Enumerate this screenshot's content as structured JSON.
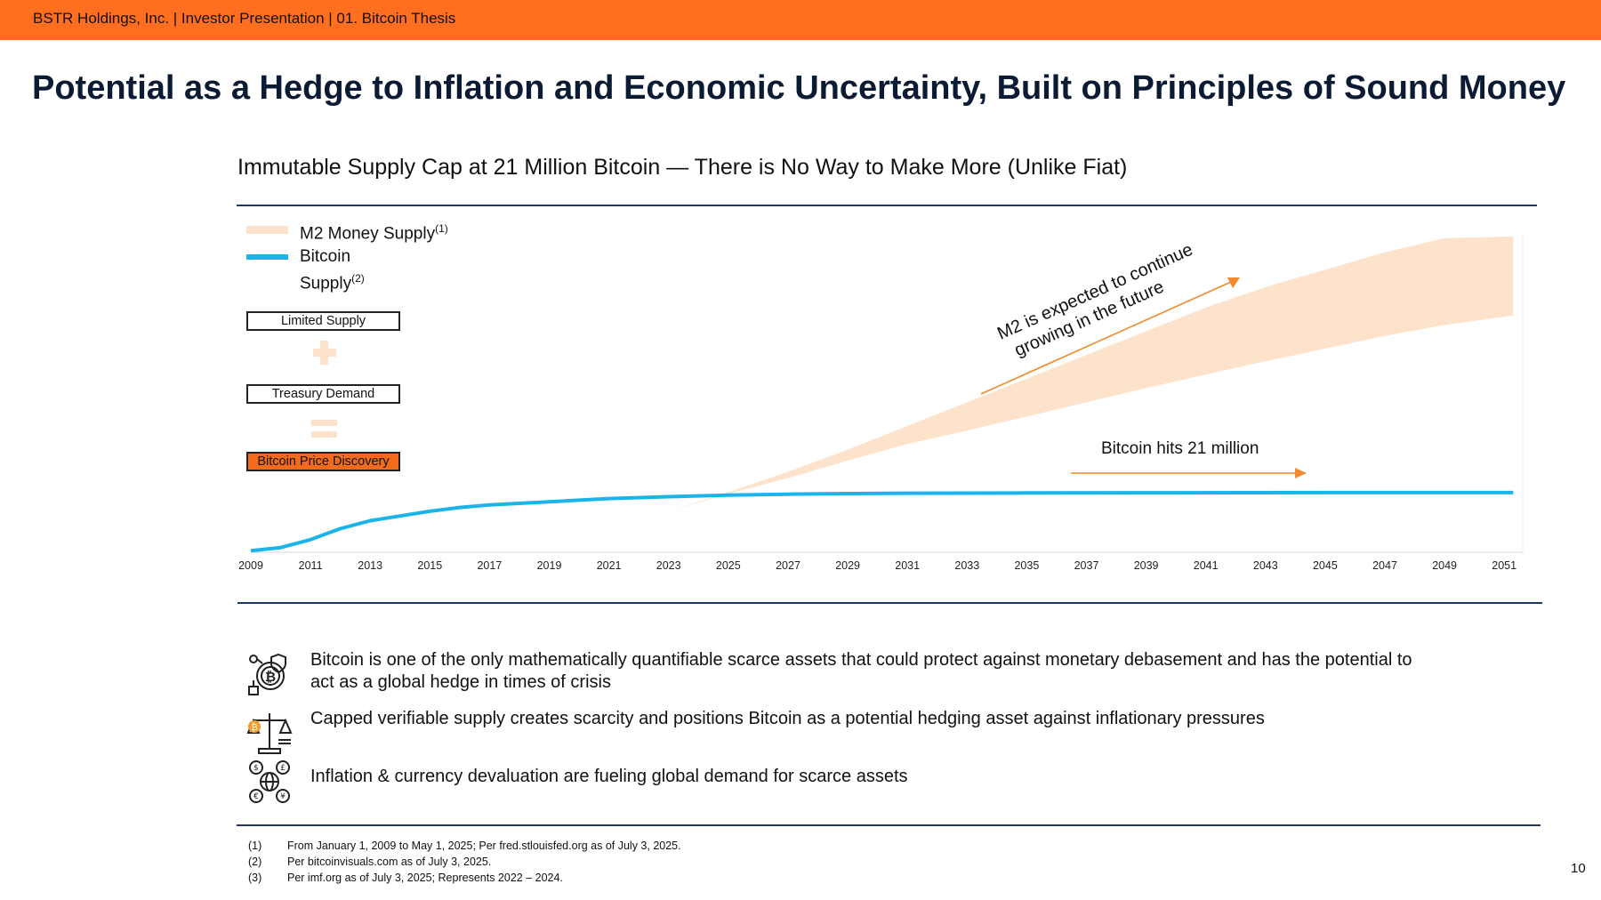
{
  "header": {
    "text": "BSTR Holdings, Inc. | Investor Presentation | 01. Bitcoin Thesis"
  },
  "title": "Potential as a Hedge to Inflation and Economic Uncertainty, Built on Principles of Sound Money",
  "chart_heading": "Immutable Supply Cap at 21 Million Bitcoin — There is No Way to Make More (Unlike Fiat)",
  "legend": {
    "m2": "M2 Money  Supply",
    "m2_sup": "(1)",
    "btc_line1": "Bitcoin",
    "btc_line2": "Supply",
    "btc_sup": "(2)"
  },
  "equation": {
    "box1": "Limited Supply",
    "box2": "Treasury Demand",
    "box3": "Bitcoin Price Discovery"
  },
  "colors": {
    "accent": "#FF6F1F",
    "bitcoin": "#1BB4E8",
    "m2": "#FDE3CB",
    "navy": "#1F3864",
    "arrow": "#F08A2C"
  },
  "chart_data": {
    "type": "area",
    "title": "Immutable Supply Cap at 21 Million Bitcoin — There is No Way to Make More (Unlike Fiat)",
    "x_tick_labels": [
      "2009",
      "2011",
      "2013",
      "2015",
      "2017",
      "2019",
      "2021",
      "2023",
      "2025",
      "2027",
      "2029",
      "2031",
      "2033",
      "2035",
      "2037",
      "2039",
      "2041",
      "2043",
      "2045",
      "2047",
      "2049",
      "2051"
    ],
    "xlim": [
      2009,
      2051.5
    ],
    "ylim": [
      0,
      100
    ],
    "series": [
      {
        "name": "M2 Money Supply",
        "kind": "band",
        "x": [
          2009,
          2011,
          2013,
          2015,
          2017,
          2019,
          2021,
          2023,
          2025,
          2027,
          2029,
          2031,
          2033,
          2035,
          2037,
          2039,
          2041,
          2043,
          2045,
          2047,
          2049,
          2051.3
        ],
        "lower": [
          0.3,
          0.6,
          1.2,
          2.2,
          3.5,
          5,
          7.5,
          13,
          18.5,
          23.5,
          29,
          34.3,
          38.5,
          43,
          47.5,
          52,
          56.3,
          60.5,
          64.5,
          68.5,
          72,
          75
        ],
        "upper": [
          0.3,
          0.6,
          1.2,
          2.2,
          3.5,
          5,
          7.5,
          13,
          19,
          25.5,
          32.5,
          40,
          47.5,
          55,
          62.5,
          70,
          77.5,
          84,
          89.5,
          95,
          99.5,
          100
        ]
      },
      {
        "name": "Bitcoin Supply",
        "kind": "line",
        "x": [
          2009,
          2010,
          2011,
          2012,
          2013,
          2014,
          2015,
          2016,
          2017,
          2018,
          2019,
          2020,
          2021,
          2023,
          2025,
          2027,
          2029,
          2031,
          2035,
          2040,
          2045,
          2051.3
        ],
        "values": [
          0.5,
          1.5,
          4,
          7.5,
          10,
          11.5,
          13,
          14.2,
          15,
          15.5,
          16,
          16.5,
          17,
          17.6,
          18.1,
          18.4,
          18.6,
          18.7,
          18.8,
          18.85,
          18.9,
          18.9
        ]
      }
    ],
    "annotations": [
      "M2 is expected to continue growing in the future",
      "Bitcoin hits 21 million"
    ]
  },
  "annotations": {
    "m2_line1": "M2 is expected to continue",
    "m2_line2": "growing in the future",
    "btc_cap": "Bitcoin hits 21 million"
  },
  "bullets": [
    {
      "icon": "bitcoin-shield-icon",
      "text": "Bitcoin is one of the only mathematically quantifiable scarce assets that could protect against monetary debasement and has the potential to act as a global hedge in times of crisis"
    },
    {
      "icon": "scale-icon",
      "text": "Capped verifiable supply creates scarcity and positions Bitcoin as a potential hedging asset against inflationary pressures"
    },
    {
      "icon": "currency-globe-icon",
      "text": "Inflation & currency devaluation are fueling global demand for scarce assets"
    }
  ],
  "footnotes": [
    {
      "num": "(1)",
      "text": "From January 1, 2009  to May 1, 2025; Per fred.stlouisfed.org as of July 3, 2025."
    },
    {
      "num": "(2)",
      "text": "Per bitcoinvisuals.com as of July 3, 2025."
    },
    {
      "num": "(3)",
      "text": "Per imf.org as of July 3, 2025; Represents 2022 – 2024."
    }
  ],
  "page_number": "10"
}
